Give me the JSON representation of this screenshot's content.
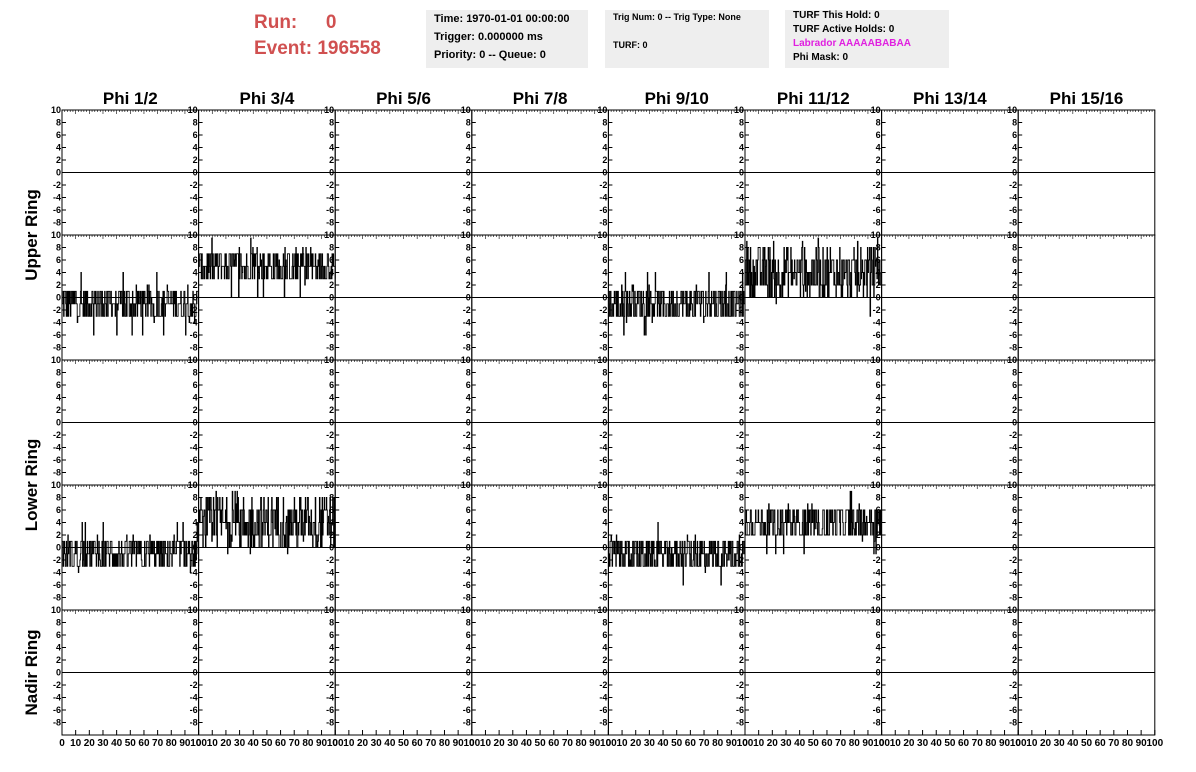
{
  "header": {
    "run_label": "Run:",
    "run_value": "0",
    "event_label": "Event:",
    "event_value": "196558",
    "accent_color": "#d05050"
  },
  "info": {
    "time": "Time: 1970-01-01 00:00:00",
    "trigger": "Trigger: 0.000000 ms",
    "priority": "Priority: 0 -- Queue: 0",
    "trig_num": "Trig Num: 0 -- Trig Type: None",
    "turf": "TURF: 0",
    "turf_this_hold": "TURF This Hold: 0",
    "turf_active_holds": "TURF Active Holds: 0",
    "labrador": "Labrador AAAAABABAA",
    "labrador_color": "#e020e0",
    "phi_mask": "Phi Mask: 0"
  },
  "chart_data": {
    "type": "line",
    "phi_titles": [
      "Phi 1/2",
      "Phi 3/4",
      "Phi 5/6",
      "Phi 7/8",
      "Phi 9/10",
      "Phi 11/12",
      "Phi 13/14",
      "Phi 15/16"
    ],
    "ring_titles": [
      "Upper Ring",
      "Lower Ring",
      "Nadir Ring"
    ],
    "ylim": [
      -10,
      10
    ],
    "y_ticks": [
      "10",
      "8",
      "6",
      "4",
      "2",
      "0",
      "-2",
      "-4",
      "-6",
      "-8"
    ],
    "xlim": [
      0,
      100
    ],
    "x_tick_labels": [
      "0",
      "10",
      "20",
      "30",
      "40",
      "50",
      "60",
      "70",
      "80",
      "90",
      "100"
    ],
    "grid": false,
    "line_color": "#000000",
    "active_traces": [
      {
        "row": 1,
        "col": 0,
        "baseline": -1,
        "spread": 3
      },
      {
        "row": 1,
        "col": 1,
        "baseline": 5,
        "spread": 3
      },
      {
        "row": 1,
        "col": 4,
        "baseline": -1,
        "spread": 3
      },
      {
        "row": 1,
        "col": 5,
        "baseline": 4,
        "spread": 4
      },
      {
        "row": 3,
        "col": 0,
        "baseline": -1,
        "spread": 3
      },
      {
        "row": 3,
        "col": 1,
        "baseline": 4,
        "spread": 4
      },
      {
        "row": 3,
        "col": 4,
        "baseline": -1,
        "spread": 3
      },
      {
        "row": 3,
        "col": 5,
        "baseline": 4,
        "spread": 3
      }
    ]
  }
}
